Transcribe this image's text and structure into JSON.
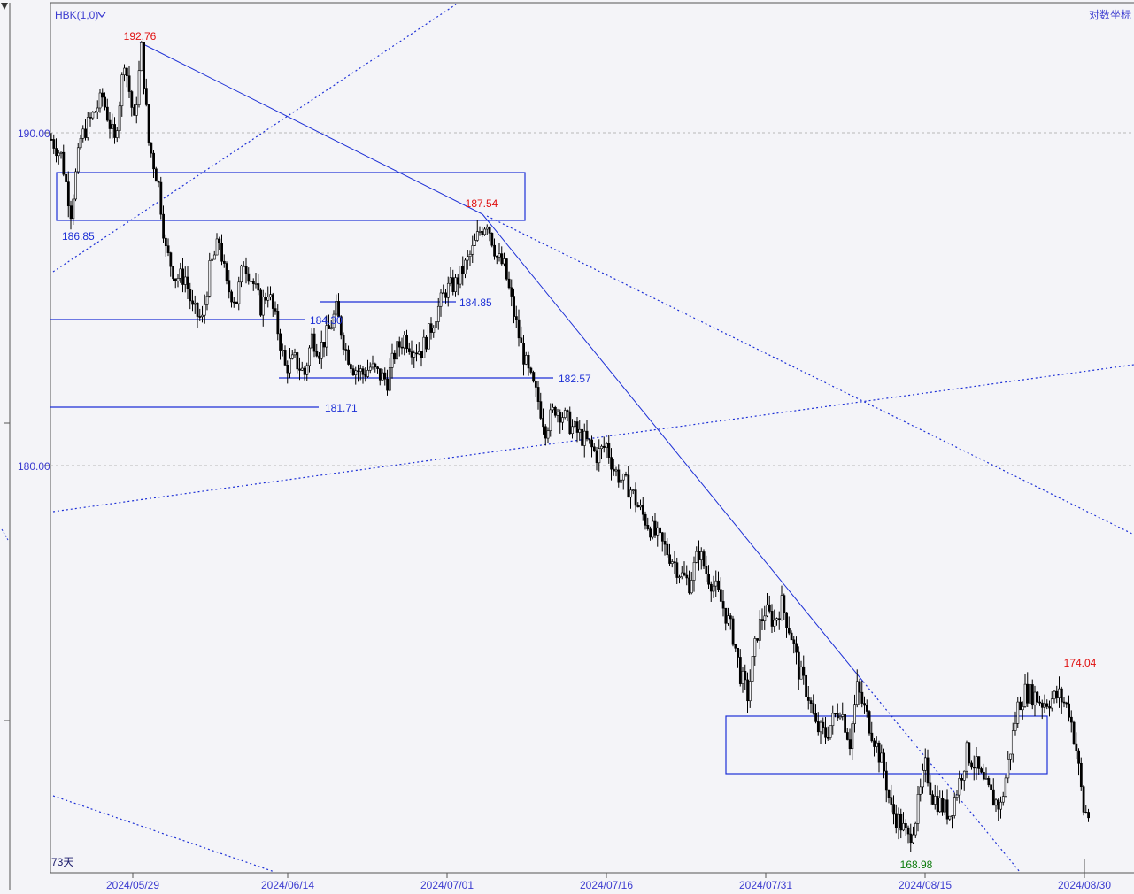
{
  "header": {
    "symbol_label": "HBK(1,0)",
    "log_scale_label": "对数坐标",
    "period_label": "73天"
  },
  "colors": {
    "background": "#f4f4f8",
    "up_candle": "#000000",
    "down_candle": "#000000",
    "drawing_blue": "#1c2fd6",
    "high_label": "#e01010",
    "low_label": "#0a7a0a",
    "grid": "#b8b8b8"
  },
  "chart_data": {
    "type": "candlestick",
    "y_axis": {
      "ticks": [
        190.0,
        180.0
      ],
      "tick_labels": [
        "190.00",
        "180.00"
      ],
      "ylim": [
        167.6,
        196.6
      ],
      "scale": "log"
    },
    "x_axis": {
      "tick_labels": [
        "2024/05/29",
        "2024/06/14",
        "2024/07/01",
        "2024/07/16",
        "2024/07/31",
        "2024/08/15",
        "2024/08/30"
      ]
    },
    "grid": true,
    "series_high": 192.76,
    "series_low": 168.98,
    "annotations": [
      {
        "id": "high-1",
        "text": "192.76",
        "kind": "high"
      },
      {
        "id": "high-2",
        "text": "187.54",
        "kind": "high"
      },
      {
        "id": "high-3",
        "text": "174.04",
        "kind": "high"
      },
      {
        "id": "low-1",
        "text": "168.98",
        "kind": "low"
      }
    ],
    "level_lines": [
      {
        "id": "level-186-85",
        "text": "186.85"
      },
      {
        "id": "level-184-85",
        "text": "184.85"
      },
      {
        "id": "level-184-30",
        "text": "184.30"
      },
      {
        "id": "level-182-57",
        "text": "182.57"
      },
      {
        "id": "level-181-71",
        "text": "181.71"
      }
    ],
    "price_path": [
      [
        0,
        189.8
      ],
      [
        4,
        189.3
      ],
      [
        8,
        187.6
      ],
      [
        12,
        189.8
      ],
      [
        16,
        190.4
      ],
      [
        21,
        191.1
      ],
      [
        26,
        189.7
      ],
      [
        30,
        192.3
      ],
      [
        34,
        190.3
      ],
      [
        37,
        192.6
      ],
      [
        40,
        189.7
      ],
      [
        44,
        188.4
      ],
      [
        47,
        186.4
      ],
      [
        51,
        185.6
      ],
      [
        55,
        185.6
      ],
      [
        58,
        184.6
      ],
      [
        62,
        184.3
      ],
      [
        65,
        185.8
      ],
      [
        69,
        186.7
      ],
      [
        72,
        185.3
      ],
      [
        76,
        184.9
      ],
      [
        79,
        186.1
      ],
      [
        83,
        185.4
      ],
      [
        86,
        184.7
      ],
      [
        89,
        185.2
      ],
      [
        93,
        184.0
      ],
      [
        96,
        182.9
      ],
      [
        100,
        183.1
      ],
      [
        104,
        182.7
      ],
      [
        107,
        183.8
      ],
      [
        110,
        183.4
      ],
      [
        114,
        184.0
      ],
      [
        117,
        184.6
      ],
      [
        121,
        183.4
      ],
      [
        124,
        182.9
      ],
      [
        128,
        182.7
      ],
      [
        131,
        182.9
      ],
      [
        134,
        182.7
      ],
      [
        138,
        182.5
      ],
      [
        141,
        183.3
      ],
      [
        145,
        183.8
      ],
      [
        148,
        183.5
      ],
      [
        152,
        183.4
      ],
      [
        155,
        183.9
      ],
      [
        158,
        184.5
      ],
      [
        162,
        185.2
      ],
      [
        166,
        185.4
      ],
      [
        169,
        185.8
      ],
      [
        173,
        186.4
      ],
      [
        176,
        187.0
      ],
      [
        179,
        187.3
      ],
      [
        183,
        186.2
      ],
      [
        186,
        185.9
      ],
      [
        190,
        184.5
      ],
      [
        193,
        183.5
      ],
      [
        196,
        182.7
      ],
      [
        200,
        181.9
      ],
      [
        203,
        181.1
      ],
      [
        207,
        181.7
      ],
      [
        210,
        181.5
      ],
      [
        214,
        181.1
      ],
      [
        217,
        180.9
      ],
      [
        221,
        180.6
      ],
      [
        224,
        180.3
      ],
      [
        228,
        180.6
      ],
      [
        231,
        179.9
      ],
      [
        235,
        179.5
      ],
      [
        238,
        179.3
      ],
      [
        241,
        178.8
      ],
      [
        245,
        178.3
      ],
      [
        248,
        178.0
      ],
      [
        252,
        177.6
      ],
      [
        255,
        177.3
      ],
      [
        259,
        176.8
      ],
      [
        262,
        176.6
      ],
      [
        266,
        177.5
      ],
      [
        269,
        176.9
      ],
      [
        273,
        176.4
      ],
      [
        276,
        175.9
      ],
      [
        280,
        175.1
      ],
      [
        283,
        174.0
      ],
      [
        286,
        173.4
      ],
      [
        290,
        175.2
      ],
      [
        293,
        175.8
      ],
      [
        297,
        175.5
      ],
      [
        300,
        176.0
      ],
      [
        304,
        175.1
      ],
      [
        307,
        174.1
      ],
      [
        311,
        173.4
      ],
      [
        314,
        172.5
      ],
      [
        318,
        172.3
      ],
      [
        321,
        172.7
      ],
      [
        324,
        173.1
      ],
      [
        328,
        172.1
      ],
      [
        331,
        173.6
      ],
      [
        335,
        172.8
      ],
      [
        338,
        172.2
      ],
      [
        342,
        171.3
      ],
      [
        345,
        170.2
      ],
      [
        349,
        169.8
      ],
      [
        352,
        169.4
      ],
      [
        355,
        170.0
      ],
      [
        359,
        171.4
      ],
      [
        362,
        170.6
      ],
      [
        366,
        170.3
      ],
      [
        369,
        170.1
      ],
      [
        373,
        171.0
      ],
      [
        376,
        171.8
      ],
      [
        380,
        171.4
      ],
      [
        383,
        170.9
      ],
      [
        387,
        170.5
      ],
      [
        390,
        170.3
      ],
      [
        393,
        171.5
      ],
      [
        397,
        173.1
      ],
      [
        400,
        173.5
      ],
      [
        404,
        173.4
      ],
      [
        407,
        173.2
      ],
      [
        411,
        173.3
      ],
      [
        414,
        173.4
      ],
      [
        418,
        173.0
      ],
      [
        421,
        171.9
      ],
      [
        424,
        170.2
      ],
      [
        427,
        170.0
      ]
    ]
  }
}
